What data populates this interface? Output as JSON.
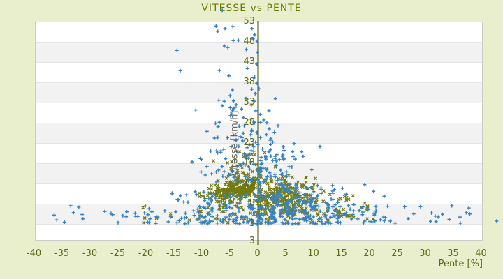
{
  "colors": {
    "background": "#e9efcd",
    "plot_band_light": "#ffffff",
    "plot_band_dark": "#f2f2f2",
    "grid_line": "#e3e3e3",
    "plot_border": "#cbcbcb",
    "axis_line": "#424d00",
    "tick_text": "#5f6814",
    "title_text": "#6d7a00",
    "ylabel_text": "#63655a",
    "series_blue": "#3583c6",
    "series_olive": "#737a10"
  },
  "chart_data": {
    "type": "scatter",
    "title": "VITESSE vs PENTE",
    "xlabel": "Pente [%]",
    "ylabel": "Vitesse [km/h]",
    "xlim": [
      -40,
      40
    ],
    "ylim": [
      3,
      53
    ],
    "x_ticks": [
      -40,
      -35,
      -30,
      -25,
      -20,
      -15,
      -10,
      -5,
      0,
      5,
      10,
      15,
      20,
      25,
      30,
      35,
      40
    ],
    "y_ticks": [
      53,
      48,
      43,
      38,
      33,
      28,
      23,
      18,
      13,
      8,
      3
    ],
    "y_bottom_edge_label": "3",
    "grid": "horizontal-bands",
    "legend": "none",
    "zero_axis_line": true,
    "seed": 1234,
    "series": [
      {
        "name": "series-olive",
        "marker": "x",
        "color": "#737a10",
        "points_explicit": [],
        "clusters": [
          {
            "n": 250,
            "p": {
              "type": "normal",
              "mean": -3.6,
              "sd": 2.5,
              "clamp": [
                -10.5,
                -0.1
              ]
            },
            "v": {
              "type": "normal",
              "mean": 11.3,
              "sd": 1.6,
              "clamp": [
                7.5,
                15.8
              ]
            },
            "slope": 0.3
          },
          {
            "n": 240,
            "p": {
              "type": "normal",
              "mean": 4.8,
              "sd": 3.2,
              "clamp": [
                0.1,
                15
              ]
            },
            "v": {
              "type": "normal",
              "mean": 9.6,
              "sd": 2.3,
              "clamp": [
                3.5,
                16
              ]
            }
          },
          {
            "n": 25,
            "p": {
              "type": "uniform",
              "min": 12,
              "max": 21
            },
            "v": {
              "type": "uniform",
              "min": 4,
              "max": 10
            }
          },
          {
            "n": 80,
            "p": {
              "type": "normal",
              "mean": -1,
              "sd": 8,
              "clamp": [
                -21,
                24
              ]
            },
            "v": {
              "type": "uniform",
              "min": 3,
              "max": 7.5
            }
          },
          {
            "n": 26,
            "p": {
              "type": "normal",
              "mean": -1.5,
              "sd": 3.5,
              "clamp": [
                -9,
                6
              ]
            },
            "v": {
              "type": "uniform",
              "min": 15.5,
              "max": 21
            }
          },
          {
            "n": 22,
            "p": {
              "type": "normal",
              "mean": 0.45,
              "sd": 0.25,
              "clamp": [
                0,
                1
              ]
            },
            "v": {
              "type": "uniform",
              "min": 3.5,
              "max": 17
            }
          }
        ]
      },
      {
        "name": "series-blue",
        "marker": "plus",
        "color": "#3583c6",
        "points_explicit": [
          [
            -7.4,
            51.9
          ],
          [
            -7.1,
            50.6
          ],
          [
            -5.8,
            51.3
          ],
          [
            -4.4,
            51.8
          ],
          [
            -3.4,
            48.4
          ],
          [
            -0.8,
            48.7
          ],
          [
            -5.3,
            46.6
          ],
          [
            -14.4,
            45.9
          ],
          [
            -2.0,
            46.1
          ],
          [
            0.0,
            45.4
          ],
          [
            -0.1,
            42.5
          ],
          [
            -1.8,
            41.4
          ],
          [
            -13.8,
            40.9
          ],
          [
            -5.1,
            39.6
          ],
          [
            -0.1,
            37.8
          ],
          [
            -1.0,
            36.3
          ],
          [
            -4.5,
            36.1
          ],
          [
            0.3,
            36.4
          ],
          [
            -4.9,
            34.7
          ],
          [
            -0.4,
            35.2
          ],
          [
            -6.3,
            55.8
          ],
          [
            42.8,
            3.7
          ],
          [
            -35.9,
            4.0
          ],
          [
            -26.2,
            5.6
          ],
          [
            -25.9,
            5.3
          ]
        ],
        "clusters": [
          {
            "n": 8,
            "p": {
              "type": "normal",
              "mean": -4,
              "sd": 3,
              "clamp": [
                -12,
                1
              ]
            },
            "v": {
              "type": "uniform",
              "min": 33,
              "max": 52
            }
          },
          {
            "n": 55,
            "p": {
              "type": "normal",
              "mean": -2,
              "sd": 3.5,
              "clamp": [
                -16,
                6
              ]
            },
            "v": {
              "type": "uniform",
              "min": 22,
              "max": 34
            }
          },
          {
            "n": 110,
            "p": {
              "type": "normal",
              "mean": 0,
              "sd": 5,
              "clamp": [
                -18,
                14
              ]
            },
            "v": {
              "type": "uniform",
              "min": 13,
              "max": 23
            }
          },
          {
            "n": 185,
            "p": {
              "type": "normal",
              "mean": 6.5,
              "sd": 6.5,
              "clamp": [
                -2,
                30
              ]
            },
            "v": {
              "type": "powlow",
              "min": 3,
              "max": 13,
              "pow": 1.6
            }
          },
          {
            "n": 125,
            "p": {
              "type": "normal",
              "mean": -7,
              "sd": 6.5,
              "clamp": [
                -24,
                -0.2
              ]
            },
            "v": {
              "type": "powlow",
              "min": 3,
              "max": 11,
              "pow": 1.6
            }
          },
          {
            "n": 42,
            "p": {
              "type": "uniform",
              "min": 12,
              "max": 38
            },
            "v": {
              "type": "uniform",
              "min": 3,
              "max": 7.5
            }
          },
          {
            "n": 20,
            "p": {
              "type": "uniform",
              "min": -37,
              "max": -18
            },
            "v": {
              "type": "uniform",
              "min": 3.2,
              "max": 7.5
            }
          },
          {
            "n": 26,
            "p": {
              "type": "normal",
              "mean": 0.45,
              "sd": 0.25,
              "clamp": [
                0,
                1
              ]
            },
            "v": {
              "type": "uniform",
              "min": 3,
              "max": 20
            }
          },
          {
            "n": 65,
            "p": {
              "type": "normal",
              "mean": 7,
              "sd": 4,
              "clamp": [
                0.2,
                16
              ]
            },
            "v": {
              "type": "normal",
              "mean": 8,
              "sd": 2.5,
              "clamp": [
                3,
                14
              ]
            }
          }
        ]
      }
    ]
  }
}
